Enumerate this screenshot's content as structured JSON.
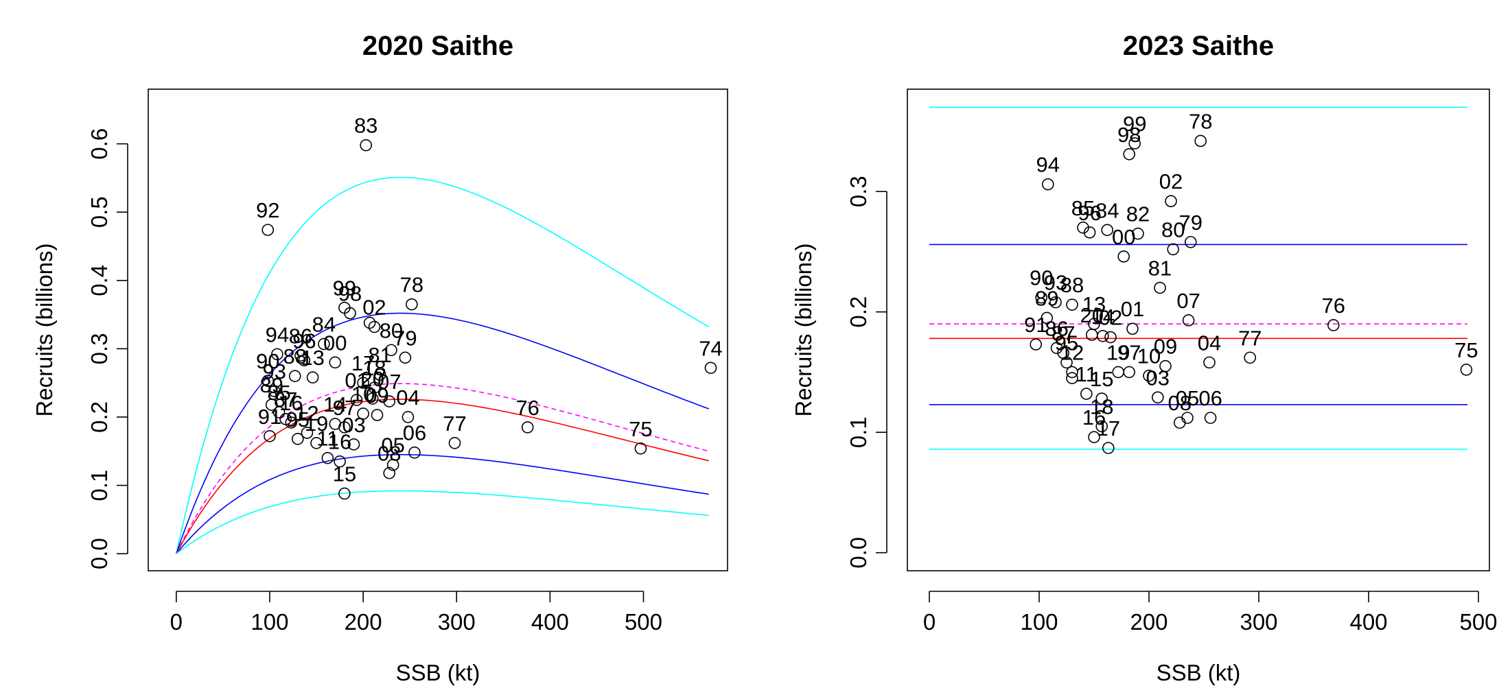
{
  "chart_data": [
    {
      "type": "scatter",
      "title": "2020 Saithe",
      "xlabel": "SSB (kt)",
      "ylabel": "Recruits (billions)",
      "xlim": [
        -30,
        590
      ],
      "ylim": [
        -0.025,
        0.68
      ],
      "xticks": [
        "0",
        "100",
        "200",
        "300",
        "400",
        "500"
      ],
      "yticks": [
        "0.0",
        "0.1",
        "0.2",
        "0.3",
        "0.4",
        "0.5",
        "0.6"
      ],
      "grid": false,
      "legend": "none",
      "points": [
        {
          "x": 203,
          "y": 0.598,
          "label": "83"
        },
        {
          "x": 98,
          "y": 0.474,
          "label": "92"
        },
        {
          "x": 252,
          "y": 0.365,
          "label": "78"
        },
        {
          "x": 572,
          "y": 0.272,
          "label": "74"
        },
        {
          "x": 376,
          "y": 0.185,
          "label": "76"
        },
        {
          "x": 497,
          "y": 0.154,
          "label": "75"
        },
        {
          "x": 298,
          "y": 0.162,
          "label": "77"
        },
        {
          "x": 180,
          "y": 0.088,
          "label": "15"
        },
        {
          "x": 108,
          "y": 0.292,
          "label": "94"
        },
        {
          "x": 180,
          "y": 0.36,
          "label": "99"
        },
        {
          "x": 186,
          "y": 0.352,
          "label": "98"
        },
        {
          "x": 212,
          "y": 0.332,
          "label": "02"
        },
        {
          "x": 158,
          "y": 0.307,
          "label": "84"
        },
        {
          "x": 230,
          "y": 0.298,
          "label": "80"
        },
        {
          "x": 245,
          "y": 0.287,
          "label": "79"
        },
        {
          "x": 133,
          "y": 0.29,
          "label": "86"
        },
        {
          "x": 137,
          "y": 0.283,
          "label": "96"
        },
        {
          "x": 170,
          "y": 0.28,
          "label": "00"
        },
        {
          "x": 218,
          "y": 0.262,
          "label": "81"
        },
        {
          "x": 98,
          "y": 0.253,
          "label": "90"
        },
        {
          "x": 105,
          "y": 0.238,
          "label": "93"
        },
        {
          "x": 127,
          "y": 0.26,
          "label": "88"
        },
        {
          "x": 146,
          "y": 0.258,
          "label": "13"
        },
        {
          "x": 200,
          "y": 0.25,
          "label": "17"
        },
        {
          "x": 212,
          "y": 0.243,
          "label": "18"
        },
        {
          "x": 210,
          "y": 0.227,
          "label": "20"
        },
        {
          "x": 102,
          "y": 0.218,
          "label": "89"
        },
        {
          "x": 110,
          "y": 0.207,
          "label": "85"
        },
        {
          "x": 117,
          "y": 0.197,
          "label": "87"
        },
        {
          "x": 123,
          "y": 0.192,
          "label": "16"
        },
        {
          "x": 100,
          "y": 0.172,
          "label": "91"
        },
        {
          "x": 193,
          "y": 0.225,
          "label": "01"
        },
        {
          "x": 228,
          "y": 0.223,
          "label": "07"
        },
        {
          "x": 200,
          "y": 0.205,
          "label": "10"
        },
        {
          "x": 215,
          "y": 0.203,
          "label": "09"
        },
        {
          "x": 248,
          "y": 0.2,
          "label": "04"
        },
        {
          "x": 170,
          "y": 0.19,
          "label": "14"
        },
        {
          "x": 180,
          "y": 0.185,
          "label": "97"
        },
        {
          "x": 140,
          "y": 0.177,
          "label": "12"
        },
        {
          "x": 130,
          "y": 0.168,
          "label": "95"
        },
        {
          "x": 150,
          "y": 0.162,
          "label": "19"
        },
        {
          "x": 190,
          "y": 0.16,
          "label": "03"
        },
        {
          "x": 255,
          "y": 0.148,
          "label": "06"
        },
        {
          "x": 162,
          "y": 0.14,
          "label": "11"
        },
        {
          "x": 175,
          "y": 0.135,
          "label": "16"
        },
        {
          "x": 232,
          "y": 0.13,
          "label": "05"
        },
        {
          "x": 228,
          "y": 0.118,
          "label": "08"
        },
        {
          "x": 207,
          "y": 0.338,
          "label": ""
        }
      ],
      "curves": [
        {
          "color": "#00ffff",
          "style": "solid",
          "peak_x": 240,
          "peak_y": 0.551,
          "end_y": 0.332
        },
        {
          "color": "#0000ff",
          "style": "solid",
          "peak_x": 240,
          "peak_y": 0.352,
          "end_y": 0.212
        },
        {
          "color": "#ff00ff",
          "style": "dashed",
          "peak_x": 240,
          "peak_y": 0.249,
          "end_y": 0.15
        },
        {
          "color": "#ff0000",
          "style": "solid",
          "peak_x": 240,
          "peak_y": 0.226,
          "end_y": 0.136
        },
        {
          "color": "#0000ff",
          "style": "solid",
          "peak_x": 240,
          "peak_y": 0.145,
          "end_y": 0.087
        },
        {
          "color": "#00ffff",
          "style": "solid",
          "peak_x": 240,
          "peak_y": 0.092,
          "end_y": 0.056
        }
      ]
    },
    {
      "type": "scatter",
      "title": "2023 Saithe",
      "xlabel": "SSB (kt)",
      "ylabel": "Recruits (billions)",
      "xlim": [
        -20,
        510
      ],
      "ylim": [
        -0.015,
        0.385
      ],
      "xticks": [
        "0",
        "100",
        "200",
        "300",
        "400",
        "500"
      ],
      "yticks": [
        "0.0",
        "0.1",
        "0.2",
        "0.3"
      ],
      "grid": false,
      "legend": "none",
      "points": [
        {
          "x": 247,
          "y": 0.342,
          "label": "78"
        },
        {
          "x": 187,
          "y": 0.34,
          "label": "99"
        },
        {
          "x": 182,
          "y": 0.331,
          "label": "98"
        },
        {
          "x": 108,
          "y": 0.306,
          "label": "94"
        },
        {
          "x": 220,
          "y": 0.292,
          "label": "02"
        },
        {
          "x": 140,
          "y": 0.27,
          "label": "85"
        },
        {
          "x": 162,
          "y": 0.268,
          "label": "84"
        },
        {
          "x": 146,
          "y": 0.266,
          "label": "96"
        },
        {
          "x": 190,
          "y": 0.265,
          "label": "82"
        },
        {
          "x": 177,
          "y": 0.246,
          "label": "00"
        },
        {
          "x": 222,
          "y": 0.252,
          "label": "80"
        },
        {
          "x": 238,
          "y": 0.258,
          "label": "79"
        },
        {
          "x": 210,
          "y": 0.22,
          "label": "81"
        },
        {
          "x": 102,
          "y": 0.212,
          "label": "90"
        },
        {
          "x": 115,
          "y": 0.208,
          "label": "93"
        },
        {
          "x": 130,
          "y": 0.206,
          "label": "88"
        },
        {
          "x": 107,
          "y": 0.195,
          "label": "89"
        },
        {
          "x": 150,
          "y": 0.19,
          "label": "13"
        },
        {
          "x": 236,
          "y": 0.193,
          "label": "07"
        },
        {
          "x": 368,
          "y": 0.189,
          "label": "76"
        },
        {
          "x": 185,
          "y": 0.186,
          "label": "01"
        },
        {
          "x": 148,
          "y": 0.181,
          "label": "20"
        },
        {
          "x": 158,
          "y": 0.18,
          "label": "14"
        },
        {
          "x": 165,
          "y": 0.179,
          "label": "02"
        },
        {
          "x": 97,
          "y": 0.173,
          "label": "91"
        },
        {
          "x": 116,
          "y": 0.17,
          "label": "86"
        },
        {
          "x": 122,
          "y": 0.166,
          "label": "87"
        },
        {
          "x": 292,
          "y": 0.162,
          "label": "77"
        },
        {
          "x": 255,
          "y": 0.158,
          "label": "04"
        },
        {
          "x": 215,
          "y": 0.155,
          "label": "09"
        },
        {
          "x": 172,
          "y": 0.15,
          "label": "19"
        },
        {
          "x": 182,
          "y": 0.15,
          "label": "97"
        },
        {
          "x": 200,
          "y": 0.147,
          "label": "10"
        },
        {
          "x": 489,
          "y": 0.152,
          "label": "75"
        },
        {
          "x": 125,
          "y": 0.158,
          "label": "95"
        },
        {
          "x": 130,
          "y": 0.15,
          "label": "12"
        },
        {
          "x": 130,
          "y": 0.145,
          "label": ""
        },
        {
          "x": 208,
          "y": 0.129,
          "label": "03"
        },
        {
          "x": 143,
          "y": 0.132,
          "label": "11"
        },
        {
          "x": 157,
          "y": 0.128,
          "label": "15"
        },
        {
          "x": 228,
          "y": 0.108,
          "label": "08"
        },
        {
          "x": 235,
          "y": 0.112,
          "label": "05"
        },
        {
          "x": 256,
          "y": 0.112,
          "label": "06"
        },
        {
          "x": 150,
          "y": 0.096,
          "label": "16"
        },
        {
          "x": 157,
          "y": 0.105,
          "label": "18"
        },
        {
          "x": 163,
          "y": 0.087,
          "label": "17"
        }
      ],
      "hlines": [
        {
          "y": 0.37,
          "color": "#00ffff",
          "style": "solid"
        },
        {
          "y": 0.256,
          "color": "#0000ff",
          "style": "solid"
        },
        {
          "y": 0.19,
          "color": "#ff00ff",
          "style": "dashed"
        },
        {
          "y": 0.178,
          "color": "#ff0000",
          "style": "solid"
        },
        {
          "y": 0.123,
          "color": "#0000ff",
          "style": "solid"
        },
        {
          "y": 0.086,
          "color": "#00ffff",
          "style": "solid"
        }
      ]
    }
  ]
}
